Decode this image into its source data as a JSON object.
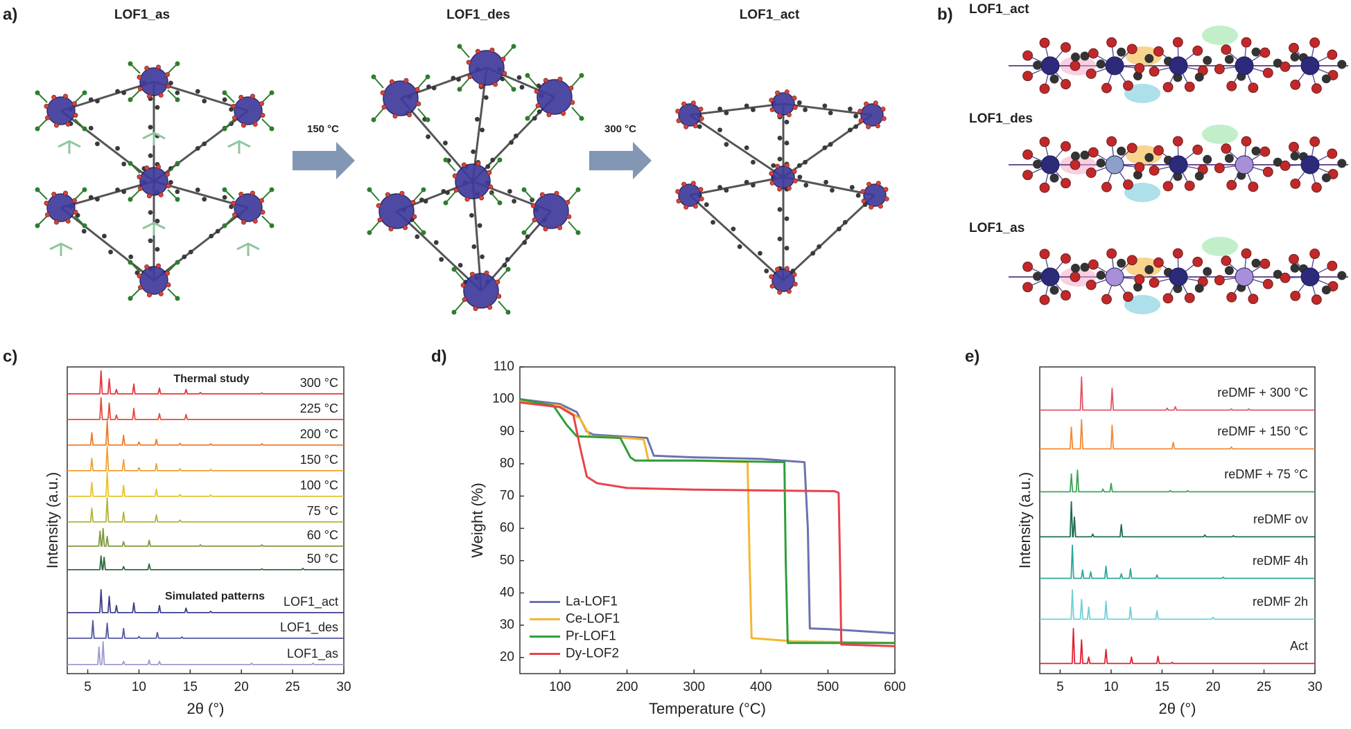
{
  "panels": {
    "a": {
      "label": "a)",
      "titles": [
        "LOF1_as",
        "LOF1_des",
        "LOF1_act"
      ],
      "arrows": [
        "150 °C",
        "300 °C"
      ]
    },
    "b": {
      "label": "b)",
      "titles": [
        "LOF1_act",
        "LOF1_des",
        "LOF1_as"
      ]
    }
  },
  "chart_data": [
    {
      "type": "line",
      "panel": "c)",
      "x_label": "2θ (°)",
      "y_label": "Intensity (a.u.)",
      "xlim": [
        3,
        30
      ],
      "xticks": [
        5,
        10,
        15,
        20,
        25,
        30
      ],
      "annotations": [
        "Thermal study",
        "Simulated patterns"
      ],
      "series": [
        {
          "name": "300 °C",
          "color": "#e8333a",
          "x": [
            3,
            6.18,
            6.3,
            6.42,
            6.98,
            7.1,
            7.22,
            7.68,
            7.8,
            7.92,
            9.38,
            9.5,
            9.62,
            11.88,
            12,
            12.12,
            14.48,
            14.6,
            14.72,
            15.88,
            16,
            16.12,
            21.88,
            22,
            22.12,
            30
          ],
          "values": [
            3,
            3,
            90,
            3,
            3,
            60,
            3,
            3,
            20,
            3,
            3,
            40,
            3,
            3,
            25,
            3,
            3,
            20,
            3,
            3,
            8,
            3,
            3,
            6,
            3,
            3
          ]
        },
        {
          "name": "225 °C",
          "color": "#e64a3a",
          "x": [
            3,
            6.18,
            6.3,
            6.42,
            6.98,
            7.1,
            7.22,
            7.68,
            7.8,
            7.92,
            9.38,
            9.5,
            9.62,
            11.88,
            12,
            12.12,
            14.48,
            14.6,
            14.72,
            30
          ],
          "values": [
            3,
            3,
            85,
            3,
            3,
            65,
            3,
            3,
            20,
            3,
            3,
            45,
            3,
            3,
            25,
            3,
            3,
            22,
            3,
            3
          ]
        },
        {
          "name": "200 °C",
          "color": "#ef7b2c",
          "x": [
            3,
            5.28,
            5.4,
            5.52,
            6.78,
            6.9,
            7.02,
            8.38,
            8.5,
            8.62,
            9.88,
            10,
            10.12,
            11.58,
            11.7,
            11.82,
            13.88,
            14,
            14.12,
            16.88,
            17,
            17.12,
            21.88,
            22,
            22.12,
            30
          ],
          "values": [
            3,
            3,
            50,
            3,
            3,
            95,
            3,
            3,
            40,
            3,
            3,
            15,
            3,
            3,
            25,
            3,
            3,
            10,
            3,
            3,
            8,
            3,
            3,
            8,
            3,
            3
          ]
        },
        {
          "name": "150 °C",
          "color": "#f3a12e",
          "x": [
            3,
            5.28,
            5.4,
            5.52,
            6.78,
            6.9,
            7.02,
            8.38,
            8.5,
            8.62,
            9.88,
            10,
            10.12,
            11.58,
            11.7,
            11.82,
            13.88,
            14,
            14.12,
            16.88,
            17,
            17.12,
            30
          ],
          "values": [
            3,
            3,
            50,
            3,
            3,
            95,
            3,
            3,
            45,
            3,
            3,
            15,
            3,
            3,
            30,
            3,
            3,
            10,
            3,
            3,
            8,
            3,
            3
          ]
        },
        {
          "name": "100 °C",
          "color": "#e9c22b",
          "x": [
            3,
            5.28,
            5.4,
            5.52,
            6.78,
            6.9,
            7.02,
            8.38,
            8.5,
            8.62,
            11.58,
            11.7,
            11.82,
            13.88,
            14,
            14.12,
            16.88,
            17,
            17.12,
            30
          ],
          "values": [
            3,
            3,
            55,
            3,
            3,
            95,
            3,
            3,
            45,
            3,
            3,
            30,
            3,
            3,
            10,
            3,
            3,
            8,
            3,
            3
          ]
        },
        {
          "name": "75 °C",
          "color": "#b4b43a",
          "x": [
            3,
            5.28,
            5.4,
            5.52,
            6.78,
            6.9,
            7.02,
            8.38,
            8.5,
            8.62,
            11.58,
            11.7,
            11.82,
            13.88,
            14,
            14.12,
            30
          ],
          "values": [
            3,
            3,
            55,
            3,
            3,
            95,
            3,
            3,
            40,
            3,
            3,
            30,
            3,
            3,
            10,
            3,
            3
          ]
        },
        {
          "name": "60 °C",
          "color": "#7f9a3b",
          "x": [
            3,
            6.08,
            6.2,
            6.32,
            6.38,
            6.5,
            6.62,
            6.78,
            6.9,
            7.02,
            8.38,
            8.5,
            8.62,
            10.88,
            11,
            11.12,
            15.88,
            16,
            16.12,
            21.88,
            22,
            22.12,
            30
          ],
          "values": [
            3,
            3,
            60,
            3,
            3,
            70,
            3,
            3,
            40,
            3,
            3,
            20,
            3,
            3,
            25,
            3,
            3,
            8,
            3,
            3,
            8,
            3,
            3
          ]
        },
        {
          "name": "50 °C",
          "color": "#2e6b3b",
          "x": [
            3,
            6.18,
            6.3,
            6.42,
            6.48,
            6.6,
            6.72,
            8.38,
            8.5,
            8.62,
            10.88,
            11,
            11.12,
            21.88,
            22,
            22.12,
            25.88,
            26,
            26.12,
            30
          ],
          "values": [
            3,
            3,
            55,
            3,
            3,
            50,
            3,
            3,
            15,
            3,
            3,
            25,
            3,
            3,
            6,
            3,
            3,
            8,
            3,
            3
          ]
        },
        {
          "name": "LOF1_act",
          "color": "#3d3d8a",
          "x": [
            3,
            6.18,
            6.3,
            6.42,
            6.98,
            7.1,
            7.22,
            7.68,
            7.8,
            7.92,
            9.38,
            9.5,
            9.62,
            11.88,
            12,
            12.12,
            14.48,
            14.6,
            14.72,
            16.88,
            17,
            17.12,
            30
          ],
          "values": [
            3,
            3,
            90,
            3,
            3,
            65,
            3,
            3,
            30,
            3,
            3,
            40,
            3,
            3,
            30,
            3,
            3,
            20,
            3,
            3,
            8,
            3,
            3
          ]
        },
        {
          "name": "LOF1_des",
          "color": "#5258a0",
          "x": [
            3,
            5.38,
            5.5,
            5.62,
            6.78,
            6.9,
            7.02,
            8.38,
            8.5,
            8.62,
            9.88,
            10,
            10.12,
            11.68,
            11.8,
            11.92,
            14.08,
            14.2,
            14.32,
            30
          ],
          "values": [
            3,
            3,
            70,
            3,
            3,
            60,
            3,
            3,
            40,
            3,
            3,
            10,
            3,
            3,
            25,
            3,
            3,
            8,
            3,
            3
          ]
        },
        {
          "name": "LOF1_as",
          "color": "#9b9bd0",
          "x": [
            3,
            5.98,
            6.1,
            6.22,
            6.38,
            6.5,
            6.62,
            8.38,
            8.5,
            8.62,
            10.88,
            11,
            11.12,
            11.88,
            12,
            12.12,
            20.88,
            21,
            21.12,
            26.88,
            27,
            27.12,
            30
          ],
          "values": [
            3,
            3,
            70,
            3,
            3,
            90,
            3,
            3,
            15,
            3,
            3,
            20,
            3,
            3,
            15,
            3,
            3,
            8,
            3,
            3,
            8,
            3,
            3
          ]
        }
      ]
    },
    {
      "type": "line",
      "panel": "d)",
      "x_label": "Temperature (°C)",
      "y_label": "Weight (%)",
      "xlim": [
        40,
        600
      ],
      "xticks": [
        100,
        200,
        300,
        400,
        500,
        600
      ],
      "ylim": [
        15,
        110
      ],
      "yticks": [
        20,
        30,
        40,
        50,
        60,
        70,
        80,
        90,
        100,
        110
      ],
      "legend": "lower left",
      "series": [
        {
          "name": "La-LOF1",
          "color": "#6b72b0",
          "x": [
            40,
            100,
            125,
            140,
            150,
            230,
            240,
            300,
            400,
            465,
            470,
            473,
            500,
            600
          ],
          "values": [
            100,
            98.5,
            96,
            90,
            89,
            88,
            82.5,
            82,
            81.5,
            80.5,
            60,
            29,
            28.8,
            27.5
          ]
        },
        {
          "name": "Ce-LOF1",
          "color": "#f5b731",
          "x": [
            40,
            100,
            130,
            145,
            200,
            225,
            232,
            300,
            380,
            383,
            386,
            450,
            600
          ],
          "values": [
            99.5,
            98,
            94,
            88.5,
            88,
            87.5,
            81,
            81,
            80.5,
            50,
            26,
            25,
            24.5
          ]
        },
        {
          "name": "Pr-LOF1",
          "color": "#2e9e3a",
          "x": [
            40,
            90,
            110,
            125,
            190,
            205,
            212,
            300,
            435,
            437,
            440,
            600
          ],
          "values": [
            100,
            98,
            92,
            88.5,
            88,
            82,
            81,
            81,
            80.5,
            50,
            24.5,
            24.5
          ]
        },
        {
          "name": "Dy-LOF2",
          "color": "#e8424a",
          "x": [
            40,
            100,
            120,
            130,
            140,
            155,
            200,
            300,
            510,
            516,
            518,
            520,
            600
          ],
          "values": [
            99,
            97.5,
            95,
            85,
            76,
            74,
            72.5,
            72,
            71.5,
            71,
            50,
            24,
            23.5
          ]
        }
      ]
    },
    {
      "type": "line",
      "panel": "e)",
      "x_label": "2θ (°)",
      "y_label": "Intensity (a.u.)",
      "xlim": [
        3,
        30
      ],
      "xticks": [
        5,
        10,
        15,
        20,
        25,
        30
      ],
      "series": [
        {
          "name": "reDMF + 300 °C",
          "color": "#e0556a",
          "x": [
            3,
            6.98,
            7.1,
            7.22,
            9.98,
            10.1,
            10.22,
            15.38,
            15.5,
            15.62,
            16.18,
            16.3,
            16.42,
            21.68,
            21.8,
            21.92,
            23.38,
            23.5,
            23.62,
            30
          ],
          "values": [
            3,
            3,
            90,
            3,
            3,
            60,
            3,
            3,
            8,
            3,
            3,
            12,
            3,
            3,
            6,
            3,
            3,
            6,
            3,
            3
          ]
        },
        {
          "name": "reDMF + 150 °C",
          "color": "#f08a3c",
          "x": [
            3,
            5.98,
            6.1,
            6.22,
            6.98,
            7.1,
            7.22,
            9.98,
            10.1,
            10.22,
            15.98,
            16.1,
            16.22,
            21.68,
            21.8,
            21.92,
            30
          ],
          "values": [
            3,
            3,
            60,
            3,
            3,
            80,
            3,
            3,
            65,
            3,
            3,
            20,
            3,
            3,
            8,
            3,
            3
          ]
        },
        {
          "name": "reDMF + 75 °C",
          "color": "#3aa655",
          "x": [
            3,
            5.98,
            6.1,
            6.22,
            6.58,
            6.7,
            6.82,
            9.08,
            9.2,
            9.32,
            9.88,
            10,
            10.12,
            15.68,
            15.8,
            15.92,
            17.38,
            17.5,
            17.62,
            30
          ],
          "values": [
            3,
            3,
            50,
            3,
            3,
            60,
            3,
            3,
            10,
            3,
            3,
            25,
            3,
            3,
            6,
            3,
            3,
            6,
            3,
            3
          ]
        },
        {
          "name": "reDMF ov",
          "color": "#1e6b52",
          "x": [
            3,
            5.98,
            6.1,
            6.22,
            6.28,
            6.4,
            6.52,
            8.08,
            8.2,
            8.32,
            10.88,
            11,
            11.12,
            19.08,
            19.2,
            19.32,
            21.88,
            22,
            22.12,
            30
          ],
          "values": [
            3,
            3,
            95,
            3,
            3,
            55,
            3,
            3,
            10,
            3,
            3,
            35,
            3,
            3,
            8,
            3,
            3,
            6,
            3,
            3
          ]
        },
        {
          "name": "reDMF 4h",
          "color": "#2aa89a",
          "x": [
            3,
            6.08,
            6.2,
            6.32,
            7.08,
            7.2,
            7.32,
            7.88,
            8,
            8.12,
            9.38,
            9.5,
            9.62,
            10.88,
            11,
            11.12,
            11.78,
            11.9,
            12.02,
            14.38,
            14.5,
            14.62,
            20.88,
            21,
            21.12,
            30
          ],
          "values": [
            3,
            3,
            90,
            3,
            3,
            25,
            3,
            3,
            20,
            3,
            3,
            35,
            3,
            3,
            15,
            3,
            3,
            28,
            3,
            3,
            12,
            3,
            3,
            6,
            3,
            3
          ]
        },
        {
          "name": "reDMF 2h",
          "color": "#6fd0d8",
          "x": [
            3,
            6.08,
            6.2,
            6.32,
            6.98,
            7.1,
            7.22,
            7.68,
            7.8,
            7.92,
            9.38,
            9.5,
            9.62,
            11.78,
            11.9,
            12.02,
            14.38,
            14.5,
            14.62,
            19.88,
            20,
            20.12,
            30
          ],
          "values": [
            3,
            3,
            80,
            3,
            3,
            55,
            3,
            3,
            35,
            3,
            3,
            50,
            3,
            3,
            35,
            3,
            3,
            25,
            3,
            3,
            8,
            3,
            3
          ]
        },
        {
          "name": "Act",
          "color": "#e02030",
          "x": [
            3,
            6.18,
            6.3,
            6.42,
            6.98,
            7.1,
            7.22,
            7.68,
            7.8,
            7.92,
            9.38,
            9.5,
            9.62,
            11.88,
            12,
            12.12,
            14.48,
            14.6,
            14.72,
            15.88,
            16,
            16.12,
            30
          ],
          "values": [
            3,
            3,
            95,
            3,
            3,
            65,
            3,
            3,
            20,
            3,
            3,
            40,
            3,
            3,
            20,
            3,
            3,
            22,
            3,
            3,
            6,
            3,
            3
          ]
        }
      ]
    }
  ]
}
